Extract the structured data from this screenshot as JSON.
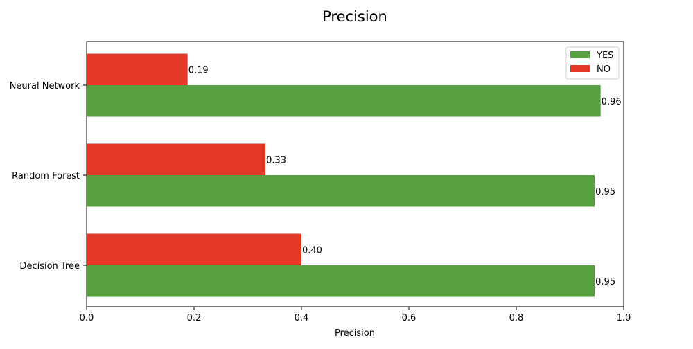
{
  "chart_data": {
    "type": "bar",
    "orientation": "horizontal",
    "title": "Precision",
    "xlabel": "Precision",
    "ylabel": "",
    "xlim": [
      0,
      1.0
    ],
    "x_ticks": [
      "0.0",
      "0.2",
      "0.4",
      "0.6",
      "0.8",
      "1.0"
    ],
    "x_tick_values": [
      0,
      0.2,
      0.4,
      0.6,
      0.8,
      1.0
    ],
    "categories": [
      "Decision Tree",
      "Random Forest",
      "Neural Network"
    ],
    "series": [
      {
        "name": "YES",
        "color": "#57a03f",
        "values": [
          0.946,
          0.946,
          0.957
        ],
        "labels": [
          "0.95",
          "0.95",
          "0.96"
        ]
      },
      {
        "name": "NO",
        "color": "#e33827",
        "values": [
          0.4,
          0.333,
          0.188
        ],
        "labels": [
          "0.40",
          "0.33",
          "0.19"
        ]
      }
    ],
    "legend": {
      "position": "top-right",
      "entries": [
        "YES",
        "NO"
      ]
    },
    "grid": false
  }
}
